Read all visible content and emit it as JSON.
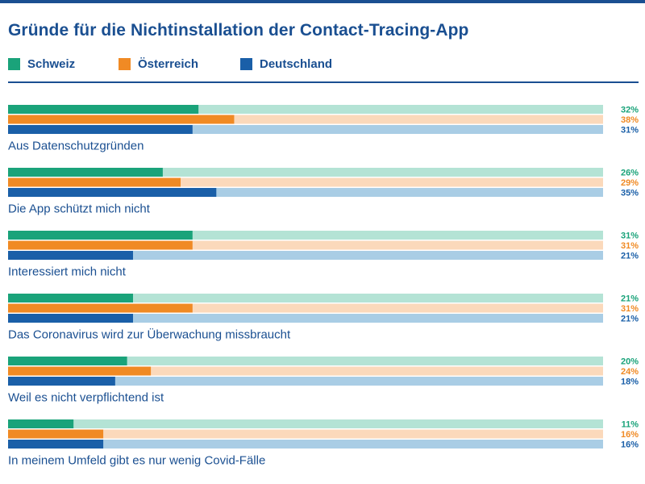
{
  "chart_data": {
    "type": "bar",
    "orientation": "horizontal",
    "title": "Gründe für die Nichtinstallation der Contact-Tracing-App",
    "xlim": [
      0,
      100
    ],
    "legend_position": "top-left",
    "grid": false,
    "categories": [
      "Aus Datenschutzgründen",
      "Die App schützt mich nicht",
      "Interessiert mich nicht",
      "Das Coronavirus wird zur Überwachung missbraucht",
      "Weil es nicht verpflichtend ist",
      "In meinem Umfeld gibt es nur wenig Covid-Fälle"
    ],
    "series": [
      {
        "name": "Schweiz",
        "color": "#1aa37a",
        "track_color": "#b4e3d5",
        "values": [
          32,
          26,
          31,
          21,
          20,
          11
        ]
      },
      {
        "name": "Österreich",
        "color": "#f08a24",
        "track_color": "#fbd9bb",
        "values": [
          38,
          29,
          31,
          31,
          24,
          16
        ]
      },
      {
        "name": "Deutschland",
        "color": "#1a5fa8",
        "track_color": "#a9cde5",
        "values": [
          31,
          35,
          21,
          21,
          18,
          16
        ]
      }
    ],
    "value_suffix": "%"
  }
}
